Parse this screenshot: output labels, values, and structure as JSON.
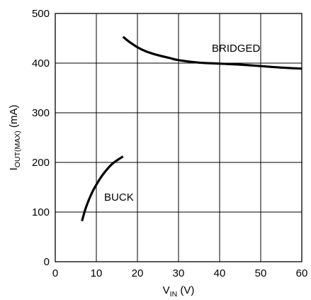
{
  "chart_data": {
    "type": "line",
    "xlabel_main": "V",
    "xlabel_sub": "IN",
    "xlabel_unit": " (V)",
    "ylabel_main": "I",
    "ylabel_sub": "OUT(MAX)",
    "ylabel_unit": " (mA)",
    "xlim": [
      0,
      60
    ],
    "ylim": [
      0,
      500
    ],
    "x_ticks": [
      0,
      10,
      20,
      30,
      40,
      50,
      60
    ],
    "y_ticks": [
      0,
      100,
      200,
      300,
      400,
      500
    ],
    "grid": true,
    "series": [
      {
        "name": "BRIDGED",
        "x": [
          16.5,
          18,
          20,
          22,
          25,
          28,
          30,
          35,
          40,
          45,
          50,
          55,
          60
        ],
        "y": [
          453,
          443,
          432,
          424,
          416,
          410,
          406,
          401,
          399,
          397,
          394,
          391,
          389
        ]
      },
      {
        "name": "BUCK",
        "x": [
          6.5,
          7.5,
          9,
          10.5,
          12,
          14,
          16.5
        ],
        "y": [
          82,
          110,
          140,
          162,
          180,
          198,
          212
        ]
      }
    ],
    "annotations": [
      {
        "text": "BRIDGED",
        "x": 44,
        "y": 430
      },
      {
        "text": "BUCK",
        "x": 15.5,
        "y": 130
      }
    ],
    "line_color": "#000000",
    "grid_color": "#000000"
  }
}
